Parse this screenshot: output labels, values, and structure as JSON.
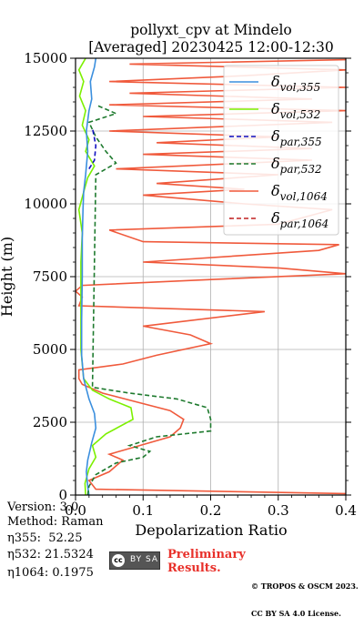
{
  "chart_data": {
    "type": "line",
    "title_line1": "pollyxt_cpv at Mindelo",
    "title_line2": "[Averaged] 20230425 12:00-12:30",
    "xlabel": "Depolarization Ratio",
    "ylabel": "Height (m)",
    "xlim": [
      0,
      0.4
    ],
    "ylim": [
      0,
      15000
    ],
    "xticks": [
      "0.0",
      "0.1",
      "0.2",
      "0.3",
      "0.4"
    ],
    "yticks": [
      "0",
      "2500",
      "5000",
      "7500",
      "10000",
      "12500",
      "15000"
    ],
    "grid": true,
    "legend_position": "top-right",
    "series": [
      {
        "id": "vol355",
        "name": "δ",
        "sub": "vol,355",
        "color": "#3b8fde",
        "dash": "solid",
        "points": [
          [
            0.02,
            0
          ],
          [
            0.018,
            300
          ],
          [
            0.016,
            800
          ],
          [
            0.018,
            1200
          ],
          [
            0.024,
            1800
          ],
          [
            0.03,
            2300
          ],
          [
            0.028,
            2800
          ],
          [
            0.02,
            3300
          ],
          [
            0.012,
            4000
          ],
          [
            0.009,
            4800
          ],
          [
            0.009,
            6000
          ],
          [
            0.01,
            7500
          ],
          [
            0.01,
            8800
          ],
          [
            0.011,
            9800
          ],
          [
            0.012,
            10400
          ],
          [
            0.015,
            11000
          ],
          [
            0.018,
            11800
          ],
          [
            0.016,
            12500
          ],
          [
            0.02,
            13200
          ],
          [
            0.024,
            13600
          ],
          [
            0.022,
            14200
          ],
          [
            0.028,
            14700
          ],
          [
            0.03,
            15000
          ]
        ]
      },
      {
        "id": "vol532",
        "name": "δ",
        "sub": "vol,532",
        "color": "#7cf000",
        "dash": "solid",
        "points": [
          [
            0.015,
            0
          ],
          [
            0.014,
            400
          ],
          [
            0.02,
            900
          ],
          [
            0.03,
            1300
          ],
          [
            0.025,
            1700
          ],
          [
            0.045,
            2100
          ],
          [
            0.085,
            2600
          ],
          [
            0.082,
            3000
          ],
          [
            0.05,
            3300
          ],
          [
            0.025,
            3600
          ],
          [
            0.012,
            4000
          ],
          [
            0.008,
            5000
          ],
          [
            0.008,
            6500
          ],
          [
            0.008,
            8000
          ],
          [
            0.01,
            9000
          ],
          [
            0.005,
            9800
          ],
          [
            0.012,
            10400
          ],
          [
            0.018,
            10900
          ],
          [
            0.028,
            11300
          ],
          [
            0.015,
            11800
          ],
          [
            0.02,
            12200
          ],
          [
            0.01,
            12700
          ],
          [
            0.015,
            13200
          ],
          [
            0.006,
            13700
          ],
          [
            0.012,
            14200
          ],
          [
            0.005,
            14600
          ],
          [
            0.015,
            15000
          ]
        ]
      },
      {
        "id": "par355",
        "name": "δ",
        "sub": "par,355",
        "color": "#1010c0",
        "dash": "dash",
        "points": [
          [
            0.02,
            11200
          ],
          [
            0.028,
            11500
          ],
          [
            0.03,
            12000
          ],
          [
            0.025,
            12600
          ]
        ]
      },
      {
        "id": "par532",
        "name": "δ",
        "sub": "par,532",
        "color": "#1e7a2e",
        "dash": "dash",
        "points": [
          [
            0.018,
            0
          ],
          [
            0.02,
            300
          ],
          [
            0.03,
            700
          ],
          [
            0.06,
            1100
          ],
          [
            0.1,
            1300
          ],
          [
            0.11,
            1500
          ],
          [
            0.08,
            1700
          ],
          [
            0.12,
            2000
          ],
          [
            0.2,
            2200
          ],
          [
            0.2,
            2600
          ],
          [
            0.195,
            3000
          ],
          [
            0.15,
            3300
          ],
          [
            0.08,
            3500
          ],
          [
            0.025,
            3700
          ],
          [
            0.03,
            11000
          ],
          [
            0.06,
            11400
          ],
          [
            0.045,
            11800
          ],
          [
            0.03,
            12300
          ],
          [
            0.02,
            12800
          ],
          [
            0.06,
            13100
          ],
          [
            0.03,
            13400
          ]
        ]
      },
      {
        "id": "vol1064",
        "name": "δ",
        "sub": "vol,1064",
        "color": "#f05a3c",
        "dash": "solid",
        "points": [
          [
            0.4,
            50
          ],
          [
            0.03,
            200
          ],
          [
            0.02,
            500
          ],
          [
            0.05,
            800
          ],
          [
            0.07,
            1200
          ],
          [
            0.05,
            1400
          ],
          [
            0.095,
            1700
          ],
          [
            0.14,
            2000
          ],
          [
            0.155,
            2300
          ],
          [
            0.16,
            2600
          ],
          [
            0.14,
            2900
          ],
          [
            0.09,
            3200
          ],
          [
            0.04,
            3500
          ],
          [
            0.01,
            3800
          ],
          [
            0.005,
            4000
          ],
          [
            0.005,
            4300
          ],
          [
            0.07,
            4500
          ],
          [
            0.12,
            4800
          ],
          [
            0.2,
            5200
          ],
          [
            0.17,
            5500
          ],
          [
            0.1,
            5800
          ],
          [
            0.28,
            6300
          ],
          [
            0.005,
            6500
          ],
          [
            0.01,
            6800
          ],
          [
            0.0,
            7000
          ],
          [
            0.01,
            7200
          ],
          [
            0.2,
            7400
          ],
          [
            0.4,
            7600
          ],
          [
            0.3,
            7800
          ],
          [
            0.1,
            8000
          ],
          [
            0.36,
            8400
          ],
          [
            0.39,
            8600
          ],
          [
            0.1,
            8700
          ],
          [
            0.05,
            9100
          ],
          [
            0.3,
            9300
          ],
          [
            0.38,
            9800
          ],
          [
            0.25,
            10000
          ],
          [
            0.1,
            10300
          ],
          [
            0.25,
            10500
          ],
          [
            0.12,
            10700
          ],
          [
            0.3,
            11000
          ],
          [
            0.06,
            11200
          ],
          [
            0.35,
            11500
          ],
          [
            0.1,
            11700
          ],
          [
            0.35,
            11900
          ],
          [
            0.12,
            12100
          ],
          [
            0.3,
            12300
          ],
          [
            0.05,
            12500
          ],
          [
            0.38,
            12800
          ],
          [
            0.1,
            13000
          ],
          [
            0.4,
            13200
          ],
          [
            0.05,
            13400
          ],
          [
            0.35,
            13600
          ],
          [
            0.08,
            13800
          ],
          [
            0.4,
            14000
          ],
          [
            0.05,
            14200
          ],
          [
            0.25,
            14400
          ],
          [
            0.4,
            14600
          ],
          [
            0.08,
            14800
          ],
          [
            0.4,
            14950
          ]
        ]
      },
      {
        "id": "par1064",
        "name": "δ",
        "sub": "par,1064",
        "color": "#c02020",
        "dash": "dash",
        "points": []
      }
    ]
  },
  "info": {
    "version": "Version: 3.0",
    "method": "Method: Raman",
    "eta355": "η355:  52.25",
    "eta532": "η532: 21.5324",
    "eta1064": "η1064: 0.1975"
  },
  "footer": {
    "cc_label": "cc",
    "cc_by": "BY SA",
    "preliminary_line1": "Preliminary",
    "preliminary_line2": "Results.",
    "copyright_line1": "© TROPOS & OSCM 2023.",
    "copyright_line2": "CC BY SA 4.0 License."
  }
}
